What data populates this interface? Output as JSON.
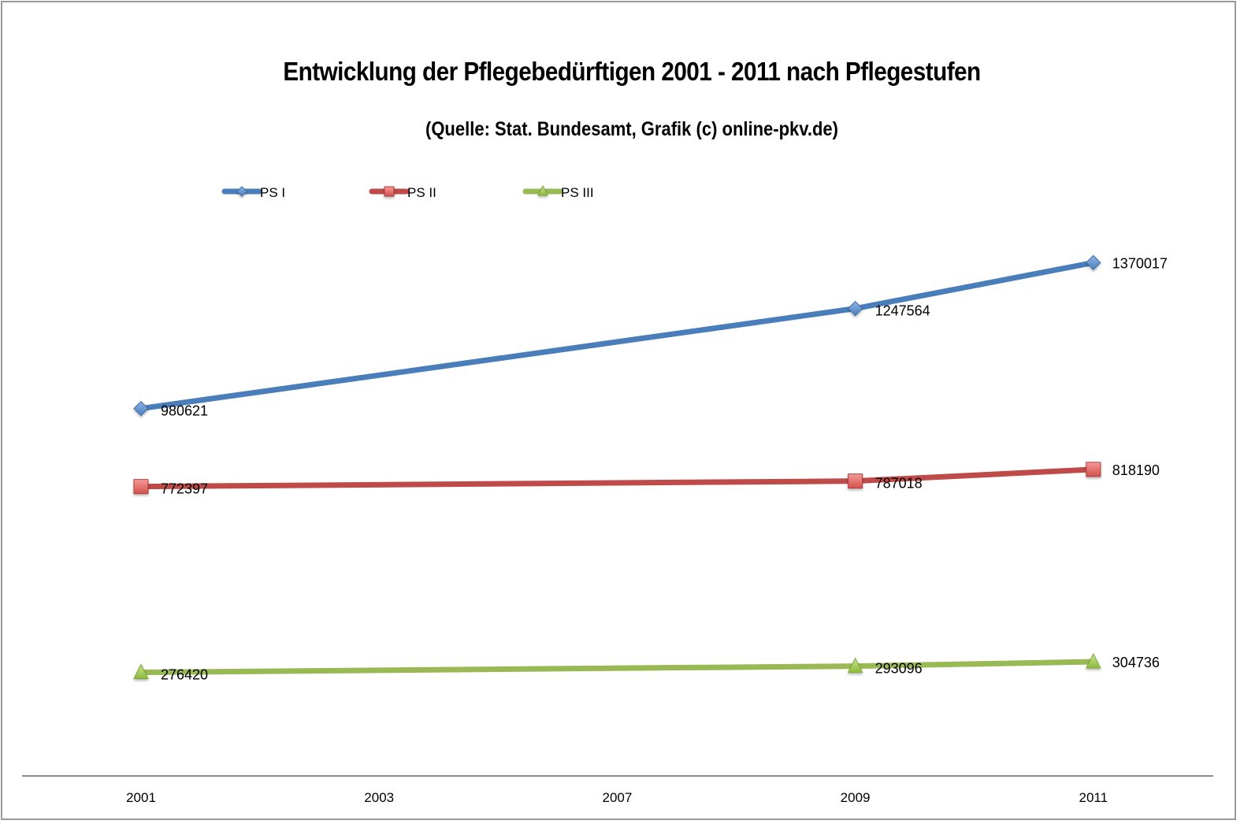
{
  "chart_data": {
    "type": "line",
    "title": "Entwicklung der Pflegebedürftigen 2001 - 2011 nach Pflegestufen",
    "subtitle": "(Quelle: Stat. Bundesamt, Grafik (c) online-pkv.de)",
    "xlabel": "",
    "ylabel": "",
    "categories": [
      "2001",
      "2003",
      "2007",
      "2009",
      "2011"
    ],
    "ylim": [
      0,
      1600000
    ],
    "grid": false,
    "y_axis_visible": false,
    "legend_position": "top-left",
    "series": [
      {
        "name": "PS I",
        "color": "#4a7ebb",
        "marker": "diamond",
        "values": [
          980621,
          null,
          null,
          1247564,
          1370017
        ],
        "labels": [
          "980621",
          null,
          null,
          "1247564",
          "1370017"
        ]
      },
      {
        "name": "PS II",
        "color": "#be4b48",
        "marker": "square",
        "values": [
          772397,
          null,
          null,
          787018,
          818190
        ],
        "labels": [
          "772397",
          null,
          null,
          "787018",
          "818190"
        ]
      },
      {
        "name": "PS III",
        "color": "#98b954",
        "marker": "triangle",
        "values": [
          276420,
          null,
          null,
          293096,
          304736
        ],
        "labels": [
          "276420",
          null,
          null,
          "293096",
          "304736"
        ]
      }
    ]
  }
}
